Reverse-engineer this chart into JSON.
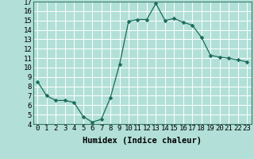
{
  "x": [
    0,
    1,
    2,
    3,
    4,
    5,
    6,
    7,
    8,
    9,
    10,
    11,
    12,
    13,
    14,
    15,
    16,
    17,
    18,
    19,
    20,
    21,
    22,
    23
  ],
  "y": [
    8.5,
    7.0,
    6.5,
    6.5,
    6.3,
    4.8,
    4.2,
    4.5,
    6.8,
    10.3,
    14.9,
    15.1,
    15.1,
    16.8,
    15.0,
    15.2,
    14.8,
    14.5,
    13.2,
    11.3,
    11.1,
    11.0,
    10.8,
    10.6
  ],
  "line_color": "#1a6b5a",
  "marker": "D",
  "marker_size": 2.5,
  "background_color": "#b2e0d8",
  "grid_color": "#ffffff",
  "xlabel": "Humidex (Indice chaleur)",
  "xlim": [
    -0.5,
    23.5
  ],
  "ylim": [
    4,
    17
  ],
  "xticks": [
    0,
    1,
    2,
    3,
    4,
    5,
    6,
    7,
    8,
    9,
    10,
    11,
    12,
    13,
    14,
    15,
    16,
    17,
    18,
    19,
    20,
    21,
    22,
    23
  ],
  "yticks": [
    4,
    5,
    6,
    7,
    8,
    9,
    10,
    11,
    12,
    13,
    14,
    15,
    16,
    17
  ],
  "xlabel_fontsize": 7.5,
  "tick_fontsize": 6.5
}
